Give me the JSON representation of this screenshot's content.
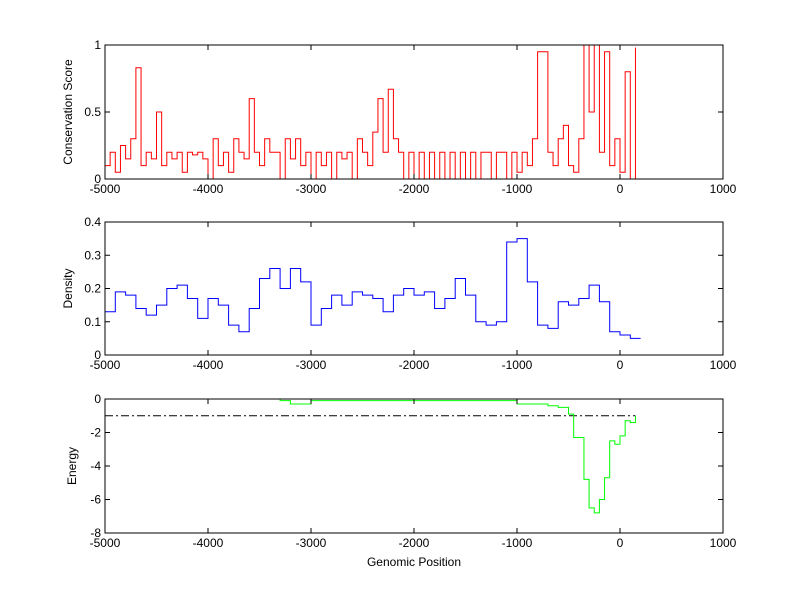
{
  "chart_data": [
    {
      "type": "line",
      "ylabel": "Conservation Score",
      "xlabel": "",
      "xlim": [
        -5000,
        1000
      ],
      "ylim": [
        0,
        1
      ],
      "xticks": [
        -5000,
        -4000,
        -3000,
        -2000,
        -1000,
        0,
        1000
      ],
      "yticks": [
        0,
        0.5,
        1
      ],
      "ytick_labels": [
        "0",
        "0.5",
        "1"
      ],
      "grid": false,
      "color": "#ff0000",
      "x_start": -5000,
      "x_step": 50,
      "values": [
        0.1,
        0.2,
        0.05,
        0.25,
        0.15,
        0.3,
        0.83,
        0.1,
        0.2,
        0.15,
        0.5,
        0.1,
        0.2,
        0.15,
        0.2,
        0.05,
        0.2,
        0.18,
        0.2,
        0.15,
        0.0,
        0.3,
        0.1,
        0.2,
        0.05,
        0.3,
        0.2,
        0.15,
        0.6,
        0.2,
        0.1,
        0.3,
        0.2,
        0.2,
        0.0,
        0.3,
        0.15,
        0.3,
        0.1,
        0.2,
        0.0,
        0.2,
        0.1,
        0.2,
        0.0,
        0.2,
        0.15,
        0.2,
        0.0,
        0.3,
        0.2,
        0.1,
        0.35,
        0.6,
        0.2,
        0.67,
        0.3,
        0.2,
        0.0,
        0.2,
        0.0,
        0.2,
        0.0,
        0.2,
        0.0,
        0.2,
        0.0,
        0.2,
        0.0,
        0.2,
        0.0,
        0.2,
        0.0,
        0.2,
        0.2,
        0.0,
        0.2,
        0.2,
        0.0,
        0.2,
        0.05,
        0.2,
        0.1,
        0.3,
        0.95,
        0.95,
        0.2,
        0.1,
        0.3,
        0.4,
        0.1,
        0.05,
        0.3,
        1.0,
        0.5,
        1.0,
        0.2,
        0.95,
        0.1,
        0.3,
        0.05,
        0.8,
        0.0,
        0.98
      ]
    },
    {
      "type": "line",
      "ylabel": "Density",
      "xlabel": "",
      "xlim": [
        -5000,
        1000
      ],
      "ylim": [
        0,
        0.4
      ],
      "xticks": [
        -5000,
        -4000,
        -3000,
        -2000,
        -1000,
        0,
        1000
      ],
      "yticks": [
        0,
        0.1,
        0.2,
        0.3,
        0.4
      ],
      "ytick_labels": [
        "0",
        "0.1",
        "0.2",
        "0.3",
        "0.4"
      ],
      "grid": false,
      "color": "#0000ff",
      "x_start": -5000,
      "x_step": 100,
      "values": [
        0.13,
        0.19,
        0.18,
        0.14,
        0.12,
        0.15,
        0.2,
        0.21,
        0.17,
        0.11,
        0.17,
        0.15,
        0.09,
        0.07,
        0.14,
        0.23,
        0.26,
        0.2,
        0.26,
        0.22,
        0.09,
        0.14,
        0.18,
        0.15,
        0.19,
        0.18,
        0.17,
        0.13,
        0.18,
        0.2,
        0.18,
        0.19,
        0.14,
        0.17,
        0.23,
        0.18,
        0.1,
        0.09,
        0.1,
        0.34,
        0.35,
        0.22,
        0.09,
        0.08,
        0.16,
        0.15,
        0.17,
        0.21,
        0.16,
        0.07,
        0.06,
        0.05,
        0.05
      ]
    },
    {
      "type": "line",
      "ylabel": "Energy",
      "xlabel": "Genomic Position",
      "xlim": [
        -5000,
        1000
      ],
      "ylim": [
        -8,
        0
      ],
      "xticks": [
        -5000,
        -4000,
        -3000,
        -2000,
        -1000,
        0,
        1000
      ],
      "yticks": [
        -8,
        -6,
        -4,
        -2,
        0
      ],
      "ytick_labels": [
        "-8",
        "-6",
        "-4",
        "-2",
        "0"
      ],
      "grid": false,
      "color": "#00ff00",
      "threshold": -1,
      "threshold_color": "#000000",
      "x": [
        -4800,
        -4700,
        -3600,
        -3300,
        -3200,
        -3000,
        -2500,
        -2000,
        -1000,
        -700,
        -600,
        -500,
        -450,
        -400,
        -350,
        -300,
        -250,
        -200,
        -150,
        -100,
        -50,
        0,
        50,
        100,
        150
      ],
      "values": [
        0,
        0,
        0,
        -0.1,
        -0.3,
        -0.1,
        -0.1,
        -0.1,
        -0.3,
        -0.4,
        -0.5,
        -0.9,
        -2.3,
        -2.3,
        -4.8,
        -6.5,
        -6.8,
        -6.0,
        -4.7,
        -2.5,
        -2.7,
        -2.2,
        -1.3,
        -1.4,
        -1.0
      ]
    }
  ]
}
